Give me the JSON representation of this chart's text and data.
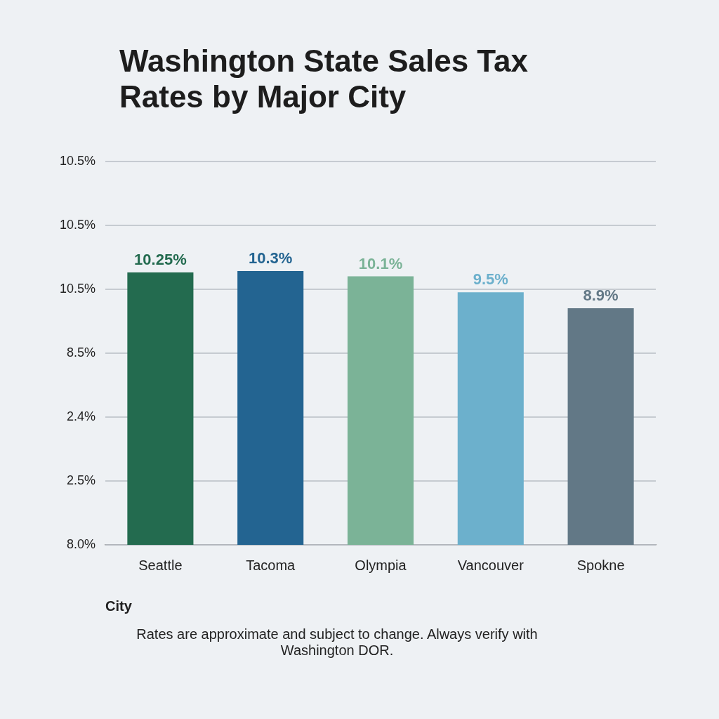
{
  "chart_data": {
    "type": "bar",
    "title": "Washington State Sales Tax Rates by Major City",
    "xlabel": "City",
    "categories": [
      "Seattle",
      "Tacoma",
      "Olympia",
      "Vancouver",
      "Spokne"
    ],
    "values": [
      10.25,
      10.3,
      10.1,
      9.5,
      8.9
    ],
    "colors": [
      "#236b4f",
      "#236491",
      "#7bb397",
      "#6cb0cc",
      "#627886"
    ],
    "value_labels": [
      "10.25%",
      "10.3%",
      "10.1%",
      "9.5%",
      "8.9%"
    ],
    "grid": "y",
    "legend": false,
    "annotations": [
      "10.5%",
      "10.5%",
      "10.5%",
      "8.5%",
      "2.4%",
      "2.5%",
      "8.0%",
      "Rates are approximate and subject to change. Always verify with Washington DOR."
    ]
  }
}
